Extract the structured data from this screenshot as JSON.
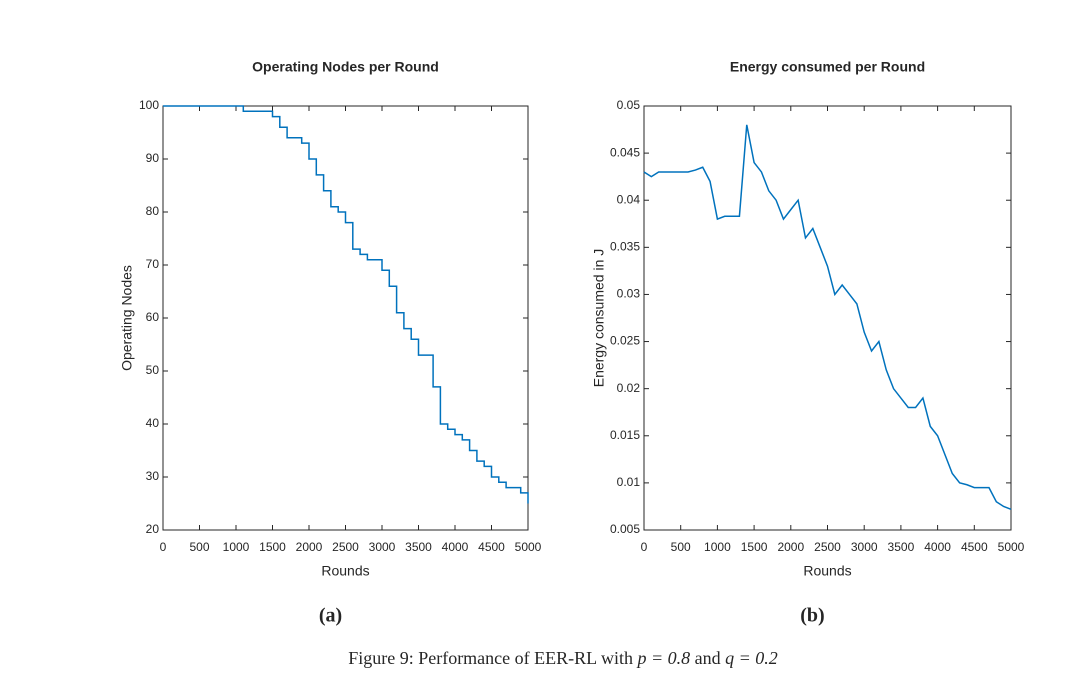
{
  "chart_data": [
    {
      "type": "line",
      "title": "Operating Nodes per Round",
      "xlabel": "Rounds",
      "ylabel": "Operating Nodes",
      "panel_label": "(a)",
      "color": "#0072bd",
      "step": true,
      "x": [
        0,
        100,
        200,
        300,
        400,
        500,
        600,
        700,
        800,
        900,
        1000,
        1100,
        1200,
        1300,
        1400,
        1500,
        1600,
        1700,
        1800,
        1900,
        2000,
        2100,
        2200,
        2300,
        2400,
        2500,
        2600,
        2700,
        2800,
        2900,
        3000,
        3100,
        3200,
        3300,
        3400,
        3500,
        3600,
        3700,
        3800,
        3900,
        4000,
        4100,
        4200,
        4300,
        4400,
        4500,
        4600,
        4700,
        4800,
        4900,
        5000
      ],
      "values": [
        100,
        100,
        100,
        100,
        100,
        100,
        100,
        100,
        100,
        100,
        100,
        99,
        99,
        99,
        99,
        98,
        96,
        94,
        94,
        93,
        90,
        87,
        84,
        81,
        80,
        78,
        73,
        72,
        71,
        71,
        69,
        66,
        61,
        58,
        56,
        53,
        53,
        47,
        40,
        39,
        38,
        37,
        35,
        33,
        32,
        30,
        29,
        28,
        28,
        27,
        25
      ],
      "xlim": [
        0,
        5000
      ],
      "xticks": [
        0,
        500,
        1000,
        1500,
        2000,
        2500,
        3000,
        3500,
        4000,
        4500,
        5000
      ],
      "ylim": [
        20,
        100
      ],
      "yticks": [
        20,
        30,
        40,
        50,
        60,
        70,
        80,
        90,
        100
      ]
    },
    {
      "type": "line",
      "title": "Energy consumed per Round",
      "xlabel": "Rounds",
      "ylabel": "Energy consumed in J",
      "panel_label": "(b)",
      "color": "#0072bd",
      "step": false,
      "x": [
        0,
        100,
        200,
        300,
        400,
        500,
        600,
        700,
        800,
        900,
        1000,
        1100,
        1200,
        1300,
        1400,
        1500,
        1600,
        1700,
        1800,
        1900,
        2000,
        2100,
        2200,
        2300,
        2400,
        2500,
        2600,
        2700,
        2800,
        2900,
        3000,
        3100,
        3200,
        3300,
        3400,
        3500,
        3600,
        3700,
        3800,
        3900,
        4000,
        4100,
        4200,
        4300,
        4400,
        4500,
        4600,
        4700,
        4800,
        4900,
        5000
      ],
      "values": [
        0.043,
        0.0425,
        0.043,
        0.043,
        0.043,
        0.043,
        0.043,
        0.0432,
        0.0435,
        0.042,
        0.038,
        0.0383,
        0.0383,
        0.0383,
        0.048,
        0.044,
        0.043,
        0.041,
        0.04,
        0.038,
        0.039,
        0.04,
        0.036,
        0.037,
        0.035,
        0.033,
        0.03,
        0.031,
        0.03,
        0.029,
        0.026,
        0.024,
        0.025,
        0.022,
        0.02,
        0.019,
        0.018,
        0.018,
        0.019,
        0.016,
        0.015,
        0.013,
        0.011,
        0.01,
        0.0098,
        0.0095,
        0.0095,
        0.0095,
        0.008,
        0.0075,
        0.0072
      ],
      "xlim": [
        0,
        5000
      ],
      "xticks": [
        0,
        500,
        1000,
        1500,
        2000,
        2500,
        3000,
        3500,
        4000,
        4500,
        5000
      ],
      "ylim": [
        0.005,
        0.05
      ],
      "yticks": [
        0.005,
        0.01,
        0.015,
        0.02,
        0.025,
        0.03,
        0.035,
        0.04,
        0.045,
        0.05
      ]
    }
  ],
  "caption": [
    "Figure 9: Performance of EER-RL with ",
    "p = 0.8",
    " and ",
    "q = 0.2"
  ]
}
